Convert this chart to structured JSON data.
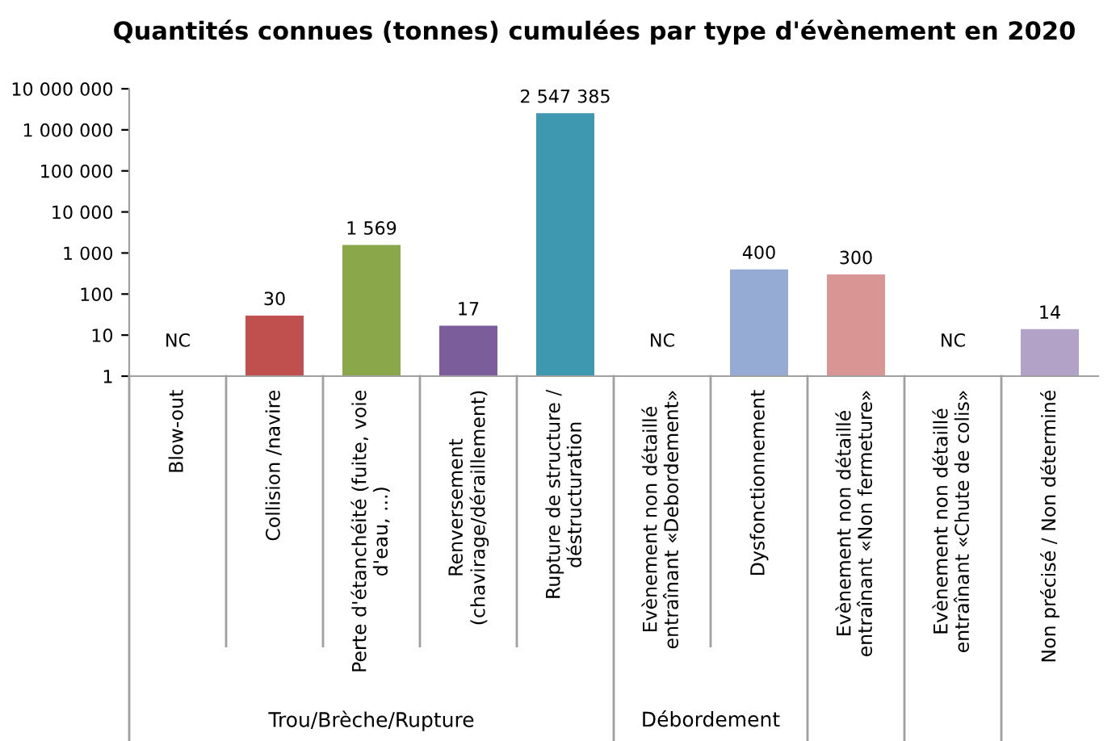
{
  "chart_data": {
    "type": "bar",
    "title": "Quantités connues (tonnes) cumulées par type d'évènement en 2020",
    "categories": [
      "Blow-out",
      "Collision /navire",
      "Perte d'étanchéité (fuite, voie\nd'eau, ...)",
      "Renversement\n(chavirage/déraillement)",
      "Rupture de structure /\ndéstructuration",
      "Evènement non détaillé\nentraînant «Debordement»",
      "Dysfonctionnement",
      "Evènement non détaillé\nentraînant «Non fermeture»",
      "Evènement non détaillé\nentraînant «Chute de colis»",
      "Non précisé / Non déterminé"
    ],
    "values": [
      null,
      30,
      1569,
      17,
      2547385,
      null,
      400,
      300,
      null,
      14
    ],
    "value_labels": [
      "NC",
      "30",
      "1 569",
      "17",
      "2 547 385",
      "NC",
      "400",
      "300",
      "NC",
      "14"
    ],
    "colors": [
      "#808080",
      "#c0504d",
      "#8aa84a",
      "#7a5d9a",
      "#3d98b0",
      "#808080",
      "#95abd3",
      "#d99594",
      "#808080",
      "#b2a2c7"
    ],
    "log": "y",
    "ylim": [
      1,
      10000000
    ],
    "yticks": [
      1,
      10,
      100,
      {
        "value": 1000,
        "label": "1 000"
      },
      {
        "value": 10000,
        "label": "10 000"
      },
      {
        "value": 100000,
        "label": "100 000"
      },
      {
        "value": 1000000,
        "label": "1 000 000"
      },
      {
        "value": 10000000,
        "label": "10 000 000"
      }
    ],
    "grid": false,
    "annotations": [
      "Trou/Brèche/Rupture",
      "Débordement"
    ]
  }
}
